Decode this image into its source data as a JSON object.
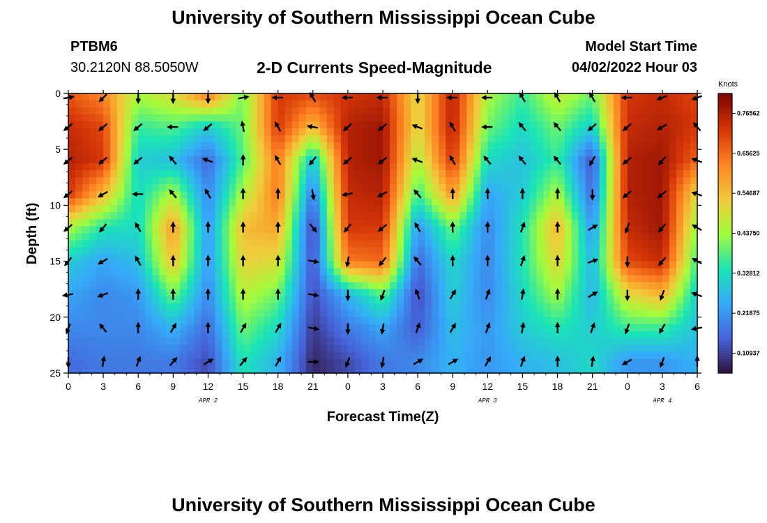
{
  "header": {
    "title": "University of Southern Mississippi Ocean Cube",
    "station_id": "PTBM6",
    "coords": "30.2120N  88.5050W",
    "subtitle": "2-D Currents Speed-Magnitude",
    "model_label": "Model Start Time",
    "model_time": "04/02/2022 Hour 03"
  },
  "footer": {
    "title": "University of Southern Mississippi Ocean Cube"
  },
  "colorbar": {
    "title": "Knots",
    "labels": [
      "0.76562",
      "0.65625",
      "0.54687",
      "0.43750",
      "0.32812",
      "0.21875",
      "0.10937"
    ],
    "min": 0.055,
    "max": 0.82
  },
  "chart_data": {
    "type": "heatmap",
    "title": "2-D Currents Speed-Magnitude",
    "xlabel": "Forecast Time(Z)",
    "ylabel": "Depth (ft)",
    "x_hours": [
      0,
      3,
      6,
      9,
      12,
      15,
      18,
      21,
      24,
      27,
      30,
      33,
      36,
      39,
      42,
      45,
      48,
      51,
      54
    ],
    "x_tick_labels": [
      "0",
      "3",
      "6",
      "9",
      "12",
      "15",
      "18",
      "21",
      "0",
      "3",
      "6",
      "9",
      "12",
      "15",
      "18",
      "21",
      "0",
      "3",
      "6"
    ],
    "y_ticks": [
      0,
      5,
      10,
      15,
      20,
      25
    ],
    "ylim": [
      0,
      25
    ],
    "date_labels": [
      {
        "hour": 12,
        "text": "APR 2"
      },
      {
        "hour": 36,
        "text": "APR 3"
      },
      {
        "hour": 51,
        "text": "APR 4"
      }
    ],
    "depths": [
      0,
      3,
      6,
      9,
      12,
      15,
      18,
      21,
      24
    ],
    "speed_knots": [
      [
        0.68,
        0.62,
        0.45,
        0.5,
        0.65,
        0.4,
        0.72,
        0.7,
        0.72,
        0.74,
        0.5,
        0.76,
        0.45,
        0.36,
        0.48,
        0.4,
        0.72,
        0.74,
        0.7
      ],
      [
        0.74,
        0.7,
        0.36,
        0.38,
        0.3,
        0.4,
        0.72,
        0.55,
        0.76,
        0.78,
        0.5,
        0.76,
        0.4,
        0.32,
        0.4,
        0.3,
        0.74,
        0.76,
        0.72
      ],
      [
        0.76,
        0.72,
        0.3,
        0.28,
        0.16,
        0.38,
        0.64,
        0.28,
        0.76,
        0.78,
        0.45,
        0.72,
        0.32,
        0.28,
        0.36,
        0.13,
        0.76,
        0.78,
        0.66
      ],
      [
        0.72,
        0.55,
        0.32,
        0.45,
        0.2,
        0.45,
        0.64,
        0.18,
        0.74,
        0.76,
        0.36,
        0.6,
        0.24,
        0.3,
        0.45,
        0.16,
        0.76,
        0.78,
        0.5
      ],
      [
        0.45,
        0.34,
        0.32,
        0.6,
        0.22,
        0.55,
        0.58,
        0.1,
        0.72,
        0.72,
        0.22,
        0.4,
        0.2,
        0.34,
        0.56,
        0.22,
        0.74,
        0.78,
        0.42
      ],
      [
        0.3,
        0.24,
        0.28,
        0.55,
        0.22,
        0.52,
        0.5,
        0.12,
        0.64,
        0.66,
        0.16,
        0.32,
        0.2,
        0.34,
        0.52,
        0.26,
        0.7,
        0.74,
        0.36
      ],
      [
        0.24,
        0.2,
        0.22,
        0.4,
        0.2,
        0.46,
        0.4,
        0.12,
        0.26,
        0.38,
        0.12,
        0.3,
        0.2,
        0.32,
        0.44,
        0.26,
        0.5,
        0.56,
        0.3
      ],
      [
        0.2,
        0.2,
        0.2,
        0.26,
        0.16,
        0.4,
        0.32,
        0.1,
        0.18,
        0.24,
        0.14,
        0.28,
        0.22,
        0.3,
        0.34,
        0.3,
        0.36,
        0.36,
        0.28
      ],
      [
        0.16,
        0.18,
        0.18,
        0.18,
        0.12,
        0.34,
        0.26,
        0.08,
        0.12,
        0.18,
        0.2,
        0.26,
        0.22,
        0.26,
        0.28,
        0.32,
        0.22,
        0.22,
        0.26
      ]
    ],
    "arrow_hours": [
      0,
      3,
      6,
      9,
      12,
      15,
      18,
      21,
      24,
      27,
      30,
      33,
      36,
      39,
      42,
      45,
      48,
      51,
      54
    ],
    "arrow_depths": [
      0,
      3,
      6,
      9,
      12,
      15,
      18,
      21,
      24
    ],
    "arrow_dir_deg": [
      [
        80,
        225,
        180,
        180,
        180,
        80,
        270,
        330,
        270,
        270,
        180,
        270,
        270,
        330,
        330,
        330,
        270,
        250,
        250
      ],
      [
        230,
        230,
        230,
        270,
        230,
        350,
        330,
        280,
        230,
        230,
        290,
        330,
        270,
        320,
        320,
        230,
        230,
        240,
        320
      ],
      [
        230,
        230,
        230,
        320,
        290,
        0,
        330,
        220,
        230,
        230,
        290,
        330,
        320,
        320,
        320,
        210,
        230,
        220,
        290
      ],
      [
        230,
        240,
        270,
        320,
        330,
        0,
        0,
        170,
        260,
        240,
        320,
        0,
        0,
        0,
        0,
        180,
        230,
        230,
        290
      ],
      [
        230,
        220,
        330,
        0,
        0,
        0,
        0,
        140,
        220,
        230,
        330,
        0,
        0,
        20,
        0,
        60,
        200,
        220,
        300
      ],
      [
        220,
        240,
        330,
        0,
        0,
        0,
        0,
        100,
        190,
        220,
        320,
        0,
        0,
        20,
        0,
        70,
        180,
        220,
        300
      ],
      [
        260,
        250,
        0,
        0,
        0,
        0,
        0,
        100,
        180,
        200,
        340,
        30,
        20,
        10,
        0,
        60,
        180,
        200,
        290
      ],
      [
        200,
        320,
        0,
        30,
        0,
        30,
        30,
        100,
        180,
        190,
        20,
        30,
        20,
        10,
        0,
        20,
        200,
        210,
        260
      ],
      [
        180,
        10,
        20,
        40,
        60,
        40,
        30,
        90,
        200,
        190,
        60,
        60,
        30,
        20,
        0,
        10,
        240,
        200,
        0
      ]
    ]
  }
}
